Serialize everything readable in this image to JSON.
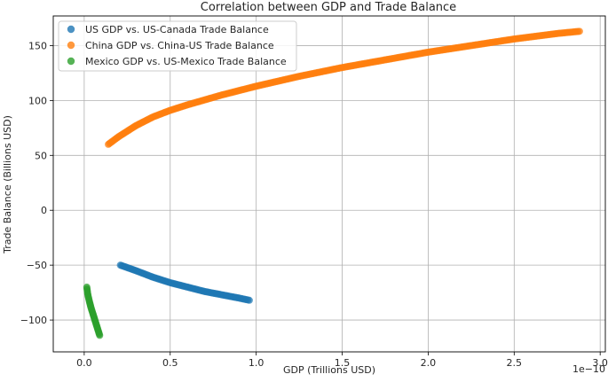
{
  "chart_data": {
    "type": "scatter",
    "title": "Correlation between GDP and Trade Balance",
    "xlabel": "GDP (Trillions USD)",
    "ylabel": "Trade Balance (Billions USD)",
    "x_offset_label": "1e−10",
    "x_scale_exponent": -10,
    "xlim": [
      -0.18,
      3.03
    ],
    "ylim": [
      -129,
      177
    ],
    "xticks": [
      {
        "value": 0.0,
        "label": "0.0"
      },
      {
        "value": 0.5,
        "label": "0.5"
      },
      {
        "value": 1.0,
        "label": "1.0"
      },
      {
        "value": 1.5,
        "label": "1.5"
      },
      {
        "value": 2.0,
        "label": "2.0"
      },
      {
        "value": 2.5,
        "label": "2.5"
      },
      {
        "value": 3.0,
        "label": "3.0"
      }
    ],
    "yticks": [
      {
        "value": -100,
        "label": "−100"
      },
      {
        "value": -50,
        "label": "−50"
      },
      {
        "value": 0,
        "label": "0"
      },
      {
        "value": 50,
        "label": "50"
      },
      {
        "value": 100,
        "label": "100"
      },
      {
        "value": 150,
        "label": "150"
      }
    ],
    "grid": true,
    "legend_position": "top-left",
    "series": [
      {
        "name": "US GDP vs. US-Canada Trade Balance",
        "color": "#1f77b4",
        "x": [
          0.21,
          0.3,
          0.4,
          0.5,
          0.6,
          0.7,
          0.8,
          0.9,
          0.96
        ],
        "y": [
          -50,
          -55,
          -61,
          -66,
          -70,
          -74,
          -77,
          -80,
          -82
        ]
      },
      {
        "name": "China GDP vs. China-US Trade Balance",
        "color": "#ff7f0e",
        "x": [
          0.14,
          0.2,
          0.3,
          0.4,
          0.5,
          0.6,
          0.8,
          1.0,
          1.25,
          1.5,
          1.75,
          2.0,
          2.25,
          2.5,
          2.75,
          2.88
        ],
        "y": [
          60,
          67,
          77,
          85,
          91,
          96,
          105,
          113,
          122,
          130,
          137,
          144,
          150,
          156,
          161,
          163
        ]
      },
      {
        "name": "Mexico GDP vs. US-Mexico Trade Balance",
        "color": "#2ca02c",
        "x": [
          0.015,
          0.02,
          0.03,
          0.04,
          0.05,
          0.06,
          0.07,
          0.08,
          0.09
        ],
        "y": [
          -70,
          -76,
          -83,
          -89,
          -94,
          -99,
          -104,
          -109,
          -114
        ]
      }
    ]
  }
}
